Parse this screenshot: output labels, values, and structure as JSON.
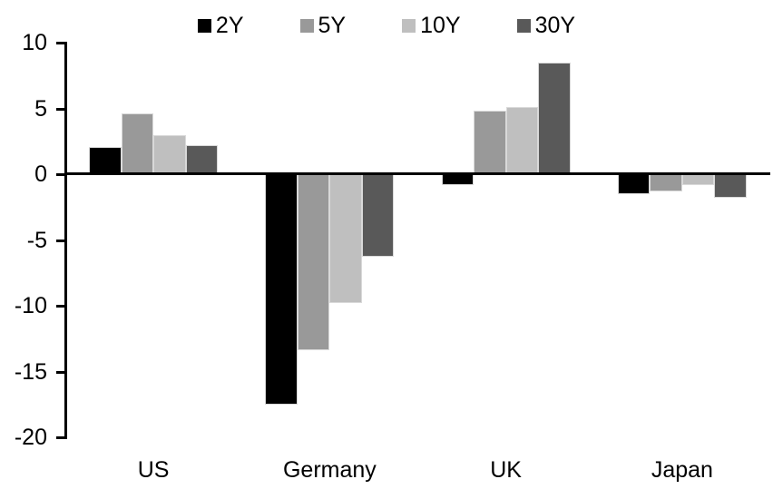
{
  "chart_data": {
    "type": "bar",
    "title": "",
    "xlabel": "",
    "ylabel": "",
    "categories": [
      "US",
      "Germany",
      "UK",
      "Japan"
    ],
    "series": [
      {
        "name": "2Y",
        "color": "#000000",
        "values": [
          2.1,
          -17.5,
          -0.8,
          -1.5
        ]
      },
      {
        "name": "5Y",
        "color": "#999999",
        "values": [
          4.6,
          -13.4,
          4.8,
          -1.3
        ]
      },
      {
        "name": "10Y",
        "color": "#bfbfbf",
        "values": [
          3.0,
          -9.8,
          5.1,
          -0.8
        ]
      },
      {
        "name": "30Y",
        "color": "#595959",
        "values": [
          2.2,
          -6.3,
          8.5,
          -1.8
        ]
      }
    ],
    "ylim": [
      -20,
      10
    ],
    "yticks": [
      10,
      5,
      0,
      -5,
      -10,
      -15,
      -20
    ],
    "grid": false,
    "legend_position": "top",
    "axis_color": "#000000",
    "background_color": "#ffffff"
  }
}
